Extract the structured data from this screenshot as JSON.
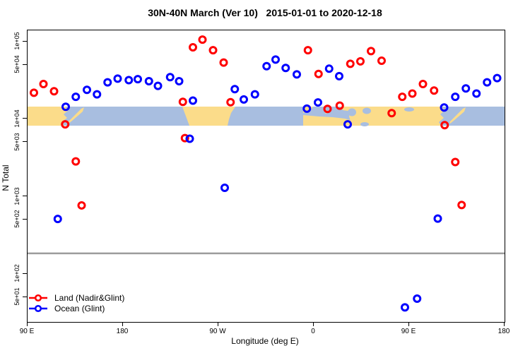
{
  "chart_data": {
    "type": "scatter",
    "title": "30N-40N March (Ver 10)   2015-01-01 to 2020-12-18",
    "xlabel": "Longitude (deg E)",
    "ylabel": "N Total",
    "x_axis": {
      "note": "longitude axis wraps eastward from 90E through 180, 90W, 0, 90E to 180",
      "range_deg": [
        90,
        540
      ],
      "ticks": [
        {
          "lon": 90,
          "label": "90 E"
        },
        {
          "lon": 180,
          "label": "180"
        },
        {
          "lon": 270,
          "label": "90 W"
        },
        {
          "lon": 360,
          "label": "0"
        },
        {
          "lon": 450,
          "label": "90 E"
        },
        {
          "lon": 540,
          "label": "180"
        }
      ]
    },
    "y_axis": {
      "scale": "log10",
      "ylim": [
        24,
        140000
      ],
      "ticks": [
        {
          "value": 100000,
          "label": "1e+05"
        },
        {
          "value": 50000,
          "label": "5e+04"
        },
        {
          "value": 10000,
          "label": "1e+04"
        },
        {
          "value": 5000,
          "label": "5e+03"
        },
        {
          "value": 1000,
          "label": "1e+03"
        },
        {
          "value": 500,
          "label": "5e+02"
        },
        {
          "value": 100,
          "label": "1e+02"
        },
        {
          "value": 50,
          "label": "5e+01"
        }
      ]
    },
    "map_band": {
      "description": "world map strip of the 30N-40N latitude band drawn across the plot",
      "top_value": 14600,
      "bottom_value": 8300,
      "land_color": "#FBDC8A",
      "ocean_color": "#A8BEE0"
    },
    "hline": {
      "value": 185,
      "color": "#9C9C9C"
    },
    "legend": {
      "position": "bottom-left",
      "items": [
        {
          "label": "Land (Nadir&Glint)",
          "color": "#FF0000"
        },
        {
          "label": "Ocean (Glint)",
          "color": "#0000FF"
        }
      ]
    },
    "series": [
      {
        "name": "Land (Nadir&Glint)",
        "color": "#FF0000",
        "marker": "open-circle",
        "points": [
          {
            "lon": 96,
            "n": 22000
          },
          {
            "lon": 105,
            "n": 28500
          },
          {
            "lon": 115,
            "n": 23000
          },
          {
            "lon": 125.5,
            "n": 8600
          },
          {
            "lon": 135.5,
            "n": 2850
          },
          {
            "lon": 141,
            "n": 770
          },
          {
            "lon": 236.5,
            "n": 16800
          },
          {
            "lon": 238.5,
            "n": 5700
          },
          {
            "lon": 246,
            "n": 85000
          },
          {
            "lon": 255,
            "n": 107000
          },
          {
            "lon": 265,
            "n": 78000
          },
          {
            "lon": 275,
            "n": 54000
          },
          {
            "lon": 281.5,
            "n": 16600
          },
          {
            "lon": 354.5,
            "n": 78000
          },
          {
            "lon": 364.5,
            "n": 38500
          },
          {
            "lon": 373,
            "n": 13600
          },
          {
            "lon": 384.5,
            "n": 15000
          },
          {
            "lon": 394.5,
            "n": 52000
          },
          {
            "lon": 404,
            "n": 56000
          },
          {
            "lon": 414,
            "n": 76000
          },
          {
            "lon": 424,
            "n": 57000
          },
          {
            "lon": 433.5,
            "n": 12000
          },
          {
            "lon": 443.5,
            "n": 19500
          },
          {
            "lon": 453,
            "n": 21500
          },
          {
            "lon": 463,
            "n": 28500
          },
          {
            "lon": 473.5,
            "n": 23500
          },
          {
            "lon": 483.5,
            "n": 8400
          },
          {
            "lon": 493.5,
            "n": 2800
          },
          {
            "lon": 499.5,
            "n": 780
          }
        ]
      },
      {
        "name": "Ocean (Glint)",
        "color": "#0000FF",
        "marker": "open-circle",
        "points": [
          {
            "lon": 118.5,
            "n": 515
          },
          {
            "lon": 126,
            "n": 14500
          },
          {
            "lon": 135.5,
            "n": 19500
          },
          {
            "lon": 146,
            "n": 24000
          },
          {
            "lon": 155.5,
            "n": 21000
          },
          {
            "lon": 165.5,
            "n": 30000
          },
          {
            "lon": 175,
            "n": 33500
          },
          {
            "lon": 185.5,
            "n": 32000
          },
          {
            "lon": 194,
            "n": 33000
          },
          {
            "lon": 204.5,
            "n": 31000
          },
          {
            "lon": 213,
            "n": 27000
          },
          {
            "lon": 224.5,
            "n": 35000
          },
          {
            "lon": 233,
            "n": 31000
          },
          {
            "lon": 243,
            "n": 5600
          },
          {
            "lon": 246,
            "n": 17400
          },
          {
            "lon": 276,
            "n": 1300
          },
          {
            "lon": 285.5,
            "n": 24500
          },
          {
            "lon": 294,
            "n": 18000
          },
          {
            "lon": 304.5,
            "n": 21000
          },
          {
            "lon": 315.5,
            "n": 48500
          },
          {
            "lon": 324,
            "n": 59000
          },
          {
            "lon": 333.5,
            "n": 46000
          },
          {
            "lon": 344,
            "n": 38000
          },
          {
            "lon": 353.5,
            "n": 13700
          },
          {
            "lon": 364,
            "n": 16500
          },
          {
            "lon": 374.5,
            "n": 45000
          },
          {
            "lon": 384,
            "n": 36000
          },
          {
            "lon": 392,
            "n": 8600
          },
          {
            "lon": 446,
            "n": 37
          },
          {
            "lon": 457.5,
            "n": 48
          },
          {
            "lon": 477,
            "n": 520
          },
          {
            "lon": 483,
            "n": 14200
          },
          {
            "lon": 493.5,
            "n": 19500
          },
          {
            "lon": 503.5,
            "n": 25000
          },
          {
            "lon": 513.5,
            "n": 21500
          },
          {
            "lon": 523.5,
            "n": 30000
          },
          {
            "lon": 533,
            "n": 34000
          }
        ]
      }
    ]
  }
}
